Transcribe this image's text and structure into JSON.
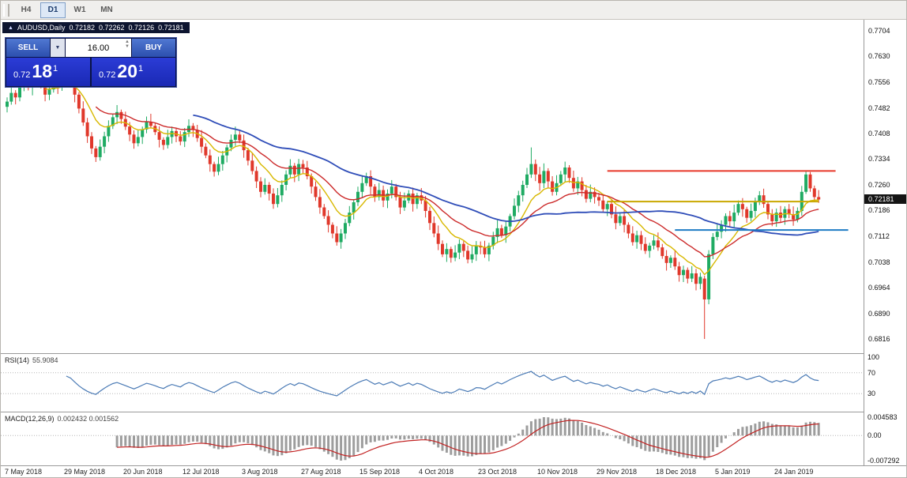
{
  "icons": {
    "collapse": "▲",
    "dropdown": "▼",
    "spin_up": "▲",
    "spin_down": "▼"
  },
  "toolbar": {
    "timeframes": [
      {
        "label": "H4",
        "active": false
      },
      {
        "label": "D1",
        "active": true
      },
      {
        "label": "W1",
        "active": false
      },
      {
        "label": "MN",
        "active": false
      }
    ]
  },
  "chart_header": {
    "symbol": "AUDUSD,Daily",
    "open": "0.72182",
    "high": "0.72262",
    "low": "0.72126",
    "close": "0.72181"
  },
  "trade_panel": {
    "sell_label": "SELL",
    "buy_label": "BUY",
    "volume": "16.00",
    "sell_price": {
      "big_prefix": "0.72",
      "big": "18",
      "sup": "1"
    },
    "buy_price": {
      "big_prefix": "0.72",
      "big": "20",
      "sup": "1"
    }
  },
  "price_axis": {
    "labels": [
      "0.7704",
      "0.7630",
      "0.7556",
      "0.7482",
      "0.7408",
      "0.7334",
      "0.7260",
      "0.7186",
      "0.7112",
      "0.7038",
      "0.6964",
      "0.6890",
      "0.6816"
    ],
    "current": "0.72181"
  },
  "indicators": {
    "rsi": {
      "name": "RSI(14)",
      "value": "55.9084",
      "levels": [
        "100",
        "70",
        "30"
      ],
      "level_values": [
        100,
        70,
        30
      ],
      "line_color": "#4a7ab5"
    },
    "macd": {
      "name": "MACD(12,26,9)",
      "values": "0.002432 0.001562",
      "level_top": "0.004583",
      "level_zero": "0.00",
      "level_bottom": "-0.007292",
      "histogram_color": "#9d9d9d",
      "signal_color": "#c22222"
    }
  },
  "date_axis": [
    "7 May 2018",
    "29 May 2018",
    "20 Jun 2018",
    "12 Jul 2018",
    "3 Aug 2018",
    "27 Aug 2018",
    "15 Sep 2018",
    "4 Oct 2018",
    "23 Oct 2018",
    "10 Nov 2018",
    "29 Nov 2018",
    "18 Dec 2018",
    "5 Jan 2019",
    "24 Jan 2019"
  ],
  "chart_data": {
    "type": "candlestick",
    "title": "AUDUSD Daily",
    "price_min": 0.6816,
    "price_max": 0.7704,
    "up_color": "#1fab63",
    "down_color": "#e0382b",
    "labels_every": 14,
    "moving_averages": [
      {
        "name": "ma-fast",
        "period": 10,
        "method": "ema",
        "color": "#d8b800",
        "width": 1.4
      },
      {
        "name": "ma-medium",
        "period": 22,
        "method": "ema",
        "color": "#cc2a2a",
        "width": 1.4
      },
      {
        "name": "ma-slow",
        "period": 45,
        "method": "sma",
        "color": "#2f4db8",
        "width": 1.8
      }
    ],
    "hlines": [
      {
        "name": "resistance-line",
        "price": 0.73,
        "from_index": 142,
        "to_index": 196,
        "color": "#e8392b"
      },
      {
        "name": "pivot-line",
        "price": 0.7212,
        "from_index": 142,
        "to_index": 192,
        "color": "#c9a800"
      },
      {
        "name": "support-line",
        "price": 0.713,
        "from_index": 158,
        "to_index": 199,
        "color": "#1e7bc4"
      }
    ],
    "candles": [
      [
        0.7485,
        0.7512,
        0.7469,
        0.75
      ],
      [
        0.75,
        0.7544,
        0.7491,
        0.7525
      ],
      [
        0.7525,
        0.7533,
        0.7492,
        0.7512
      ],
      [
        0.7512,
        0.7563,
        0.7501,
        0.7548
      ],
      [
        0.7548,
        0.7585,
        0.753,
        0.7562
      ],
      [
        0.7562,
        0.7572,
        0.7532,
        0.754
      ],
      [
        0.754,
        0.7572,
        0.7518,
        0.7555
      ],
      [
        0.7555,
        0.7577,
        0.7541,
        0.757
      ],
      [
        0.757,
        0.7591,
        0.7538,
        0.7548
      ],
      [
        0.7548,
        0.7561,
        0.7501,
        0.752
      ],
      [
        0.752,
        0.7547,
        0.7504,
        0.7535
      ],
      [
        0.7535,
        0.7569,
        0.7526,
        0.755
      ],
      [
        0.755,
        0.7558,
        0.7522,
        0.7542
      ],
      [
        0.7542,
        0.7573,
        0.7531,
        0.7558
      ],
      [
        0.7558,
        0.7581,
        0.754,
        0.757
      ],
      [
        0.757,
        0.758,
        0.7547,
        0.7555
      ],
      [
        0.7555,
        0.7572,
        0.7498,
        0.752
      ],
      [
        0.752,
        0.7527,
        0.7466,
        0.748
      ],
      [
        0.748,
        0.7501,
        0.743,
        0.744
      ],
      [
        0.744,
        0.7453,
        0.7381,
        0.74
      ],
      [
        0.74,
        0.7412,
        0.7349,
        0.7365
      ],
      [
        0.7365,
        0.7372,
        0.7326,
        0.734
      ],
      [
        0.734,
        0.7391,
        0.733,
        0.737
      ],
      [
        0.737,
        0.7413,
        0.7351,
        0.74
      ],
      [
        0.74,
        0.7446,
        0.7384,
        0.743
      ],
      [
        0.743,
        0.7464,
        0.7421,
        0.7455
      ],
      [
        0.7455,
        0.749,
        0.7435,
        0.747
      ],
      [
        0.747,
        0.7477,
        0.7436,
        0.745
      ],
      [
        0.745,
        0.7471,
        0.7418,
        0.7428
      ],
      [
        0.7428,
        0.7441,
        0.7386,
        0.7405
      ],
      [
        0.7405,
        0.7417,
        0.7364,
        0.738
      ],
      [
        0.738,
        0.7417,
        0.7371,
        0.7398
      ],
      [
        0.7398,
        0.7428,
        0.7378,
        0.742
      ],
      [
        0.742,
        0.7457,
        0.7409,
        0.7442
      ],
      [
        0.7442,
        0.7465,
        0.7424,
        0.743
      ],
      [
        0.743,
        0.744,
        0.7404,
        0.7412
      ],
      [
        0.7412,
        0.7429,
        0.7368,
        0.739
      ],
      [
        0.739,
        0.7397,
        0.7361,
        0.7375
      ],
      [
        0.7375,
        0.7419,
        0.7365,
        0.7398
      ],
      [
        0.7398,
        0.7428,
        0.7379,
        0.7415
      ],
      [
        0.7415,
        0.7423,
        0.7383,
        0.74
      ],
      [
        0.74,
        0.7415,
        0.7374,
        0.7385
      ],
      [
        0.7385,
        0.7424,
        0.7369,
        0.7412
      ],
      [
        0.7412,
        0.7449,
        0.7398,
        0.743
      ],
      [
        0.743,
        0.7438,
        0.7398,
        0.7418
      ],
      [
        0.7418,
        0.7433,
        0.7384,
        0.7395
      ],
      [
        0.7395,
        0.7418,
        0.7352,
        0.737
      ],
      [
        0.737,
        0.738,
        0.7337,
        0.7345
      ],
      [
        0.7345,
        0.7362,
        0.7298,
        0.732
      ],
      [
        0.732,
        0.7327,
        0.7284,
        0.7298
      ],
      [
        0.7298,
        0.7341,
        0.7288,
        0.732
      ],
      [
        0.732,
        0.7358,
        0.7301,
        0.7345
      ],
      [
        0.7345,
        0.7376,
        0.7325,
        0.7368
      ],
      [
        0.7368,
        0.7405,
        0.7357,
        0.739
      ],
      [
        0.739,
        0.7428,
        0.7372,
        0.7405
      ],
      [
        0.7405,
        0.7415,
        0.738,
        0.7388
      ],
      [
        0.7388,
        0.7405,
        0.7338,
        0.736
      ],
      [
        0.736,
        0.7367,
        0.7316,
        0.733
      ],
      [
        0.733,
        0.7351,
        0.729,
        0.73
      ],
      [
        0.73,
        0.7313,
        0.7251,
        0.727
      ],
      [
        0.727,
        0.7282,
        0.7224,
        0.724
      ],
      [
        0.724,
        0.7279,
        0.7232,
        0.726
      ],
      [
        0.726,
        0.7268,
        0.7215,
        0.7235
      ],
      [
        0.7235,
        0.725,
        0.7191,
        0.7205
      ],
      [
        0.7205,
        0.7251,
        0.7195,
        0.723
      ],
      [
        0.723,
        0.7273,
        0.7211,
        0.726
      ],
      [
        0.726,
        0.7302,
        0.7244,
        0.729
      ],
      [
        0.729,
        0.7334,
        0.7281,
        0.7315
      ],
      [
        0.7315,
        0.7323,
        0.7268,
        0.729
      ],
      [
        0.729,
        0.7335,
        0.7271,
        0.732
      ],
      [
        0.732,
        0.7332,
        0.7294,
        0.731
      ],
      [
        0.731,
        0.7329,
        0.7276,
        0.7285
      ],
      [
        0.7285,
        0.7293,
        0.7235,
        0.7255
      ],
      [
        0.7255,
        0.727,
        0.7214,
        0.7225
      ],
      [
        0.7225,
        0.7248,
        0.7177,
        0.7195
      ],
      [
        0.7195,
        0.7205,
        0.7162,
        0.717
      ],
      [
        0.717,
        0.7187,
        0.7123,
        0.7145
      ],
      [
        0.7145,
        0.7152,
        0.7106,
        0.712
      ],
      [
        0.712,
        0.7141,
        0.7085,
        0.7095
      ],
      [
        0.7095,
        0.7133,
        0.7076,
        0.712
      ],
      [
        0.712,
        0.7162,
        0.7104,
        0.715
      ],
      [
        0.715,
        0.7199,
        0.7141,
        0.718
      ],
      [
        0.718,
        0.7218,
        0.716,
        0.721
      ],
      [
        0.721,
        0.7255,
        0.7199,
        0.724
      ],
      [
        0.724,
        0.7288,
        0.7222,
        0.7265
      ],
      [
        0.7265,
        0.7295,
        0.7257,
        0.7285
      ],
      [
        0.7285,
        0.7302,
        0.7233,
        0.7255
      ],
      [
        0.7255,
        0.7262,
        0.7211,
        0.7225
      ],
      [
        0.7225,
        0.7266,
        0.7215,
        0.7245
      ],
      [
        0.7245,
        0.7258,
        0.7196,
        0.7215
      ],
      [
        0.7215,
        0.7247,
        0.7193,
        0.7235
      ],
      [
        0.7235,
        0.7274,
        0.7221,
        0.7255
      ],
      [
        0.7255,
        0.7263,
        0.7215,
        0.7225
      ],
      [
        0.7225,
        0.724,
        0.7176,
        0.7195
      ],
      [
        0.7195,
        0.7238,
        0.7185,
        0.7215
      ],
      [
        0.7215,
        0.7245,
        0.7207,
        0.7235
      ],
      [
        0.7235,
        0.7252,
        0.7183,
        0.7205
      ],
      [
        0.7205,
        0.7237,
        0.7191,
        0.723
      ],
      [
        0.723,
        0.7251,
        0.7205,
        0.7215
      ],
      [
        0.7215,
        0.7228,
        0.7166,
        0.7185
      ],
      [
        0.7185,
        0.7197,
        0.713,
        0.715
      ],
      [
        0.715,
        0.7169,
        0.7109,
        0.712
      ],
      [
        0.712,
        0.7143,
        0.7072,
        0.709
      ],
      [
        0.709,
        0.71,
        0.7052,
        0.706
      ],
      [
        0.706,
        0.7092,
        0.7038,
        0.7075
      ],
      [
        0.7075,
        0.7082,
        0.7036,
        0.705
      ],
      [
        0.705,
        0.7086,
        0.704,
        0.7065
      ],
      [
        0.7065,
        0.7103,
        0.7046,
        0.709
      ],
      [
        0.709,
        0.7098,
        0.7052,
        0.707
      ],
      [
        0.707,
        0.7085,
        0.7034,
        0.7045
      ],
      [
        0.7045,
        0.7083,
        0.7035,
        0.706
      ],
      [
        0.706,
        0.7098,
        0.7041,
        0.7085
      ],
      [
        0.7085,
        0.7097,
        0.706,
        0.708
      ],
      [
        0.708,
        0.7099,
        0.705,
        0.706
      ],
      [
        0.706,
        0.7093,
        0.704,
        0.7085
      ],
      [
        0.7085,
        0.7125,
        0.7074,
        0.711
      ],
      [
        0.711,
        0.7158,
        0.7092,
        0.7135
      ],
      [
        0.7135,
        0.7145,
        0.7107,
        0.7115
      ],
      [
        0.7115,
        0.7157,
        0.7093,
        0.714
      ],
      [
        0.714,
        0.7177,
        0.7126,
        0.717
      ],
      [
        0.717,
        0.7221,
        0.716,
        0.72
      ],
      [
        0.72,
        0.7243,
        0.7181,
        0.723
      ],
      [
        0.723,
        0.7272,
        0.7212,
        0.726
      ],
      [
        0.726,
        0.7309,
        0.7251,
        0.729
      ],
      [
        0.729,
        0.7368,
        0.728,
        0.732
      ],
      [
        0.732,
        0.7333,
        0.7271,
        0.729
      ],
      [
        0.729,
        0.7312,
        0.7243,
        0.7265
      ],
      [
        0.7265,
        0.7322,
        0.7251,
        0.73
      ],
      [
        0.73,
        0.7308,
        0.725,
        0.727
      ],
      [
        0.727,
        0.7285,
        0.7229,
        0.724
      ],
      [
        0.724,
        0.7288,
        0.723,
        0.7265
      ],
      [
        0.7265,
        0.73,
        0.7257,
        0.729
      ],
      [
        0.729,
        0.7327,
        0.7268,
        0.731
      ],
      [
        0.731,
        0.7317,
        0.7266,
        0.728
      ],
      [
        0.728,
        0.7301,
        0.724,
        0.725
      ],
      [
        0.725,
        0.7283,
        0.7231,
        0.727
      ],
      [
        0.727,
        0.7282,
        0.7227,
        0.7245
      ],
      [
        0.7245,
        0.726,
        0.7209,
        0.722
      ],
      [
        0.722,
        0.7261,
        0.721,
        0.724
      ],
      [
        0.724,
        0.7253,
        0.7206,
        0.7225
      ],
      [
        0.7225,
        0.7237,
        0.7199,
        0.7215
      ],
      [
        0.7215,
        0.7234,
        0.7181,
        0.719
      ],
      [
        0.719,
        0.7213,
        0.717,
        0.7205
      ],
      [
        0.7205,
        0.722,
        0.7164,
        0.7175
      ],
      [
        0.7175,
        0.7198,
        0.7132,
        0.715
      ],
      [
        0.715,
        0.718,
        0.7142,
        0.717
      ],
      [
        0.717,
        0.7187,
        0.7123,
        0.7145
      ],
      [
        0.7145,
        0.7152,
        0.7106,
        0.712
      ],
      [
        0.712,
        0.7141,
        0.7085,
        0.7095
      ],
      [
        0.7095,
        0.7128,
        0.7076,
        0.7115
      ],
      [
        0.7115,
        0.7127,
        0.7072,
        0.709
      ],
      [
        0.709,
        0.7109,
        0.7061,
        0.707
      ],
      [
        0.707,
        0.7093,
        0.705,
        0.7085
      ],
      [
        0.7085,
        0.7115,
        0.7074,
        0.71
      ],
      [
        0.71,
        0.7123,
        0.707,
        0.708
      ],
      [
        0.708,
        0.709,
        0.7047,
        0.7055
      ],
      [
        0.7055,
        0.7072,
        0.7013,
        0.7035
      ],
      [
        0.7035,
        0.7057,
        0.7021,
        0.705
      ],
      [
        0.705,
        0.7071,
        0.7015,
        0.7025
      ],
      [
        0.7025,
        0.7038,
        0.6981,
        0.7
      ],
      [
        0.7,
        0.7027,
        0.698,
        0.7015
      ],
      [
        0.7015,
        0.7022,
        0.6976,
        0.699
      ],
      [
        0.699,
        0.7026,
        0.698,
        0.7005
      ],
      [
        0.7005,
        0.7018,
        0.6956,
        0.6975
      ],
      [
        0.6975,
        0.7007,
        0.6959,
        0.6995
      ],
      [
        0.699,
        0.6998,
        0.6816,
        0.693
      ],
      [
        0.693,
        0.7072,
        0.6916,
        0.706
      ],
      [
        0.706,
        0.7121,
        0.7046,
        0.711
      ],
      [
        0.711,
        0.7146,
        0.71,
        0.7125
      ],
      [
        0.7125,
        0.7158,
        0.7106,
        0.7145
      ],
      [
        0.7145,
        0.7178,
        0.7125,
        0.717
      ],
      [
        0.717,
        0.7185,
        0.7141,
        0.7155
      ],
      [
        0.7155,
        0.7203,
        0.7137,
        0.718
      ],
      [
        0.718,
        0.7215,
        0.7172,
        0.7205
      ],
      [
        0.7205,
        0.7222,
        0.7168,
        0.719
      ],
      [
        0.719,
        0.7197,
        0.7151,
        0.7165
      ],
      [
        0.7165,
        0.7206,
        0.7155,
        0.7185
      ],
      [
        0.7185,
        0.7223,
        0.7166,
        0.721
      ],
      [
        0.721,
        0.7242,
        0.7202,
        0.723
      ],
      [
        0.723,
        0.7249,
        0.7194,
        0.7205
      ],
      [
        0.7205,
        0.7213,
        0.7161,
        0.7175
      ],
      [
        0.7175,
        0.719,
        0.7141,
        0.7155
      ],
      [
        0.7155,
        0.7192,
        0.7139,
        0.718
      ],
      [
        0.718,
        0.7199,
        0.7151,
        0.7165
      ],
      [
        0.7165,
        0.7198,
        0.7145,
        0.719
      ],
      [
        0.719,
        0.7205,
        0.7164,
        0.7175
      ],
      [
        0.7175,
        0.7198,
        0.7142,
        0.716
      ],
      [
        0.716,
        0.7195,
        0.7152,
        0.7185
      ],
      [
        0.7185,
        0.7257,
        0.7171,
        0.724
      ],
      [
        0.724,
        0.73,
        0.7234,
        0.729
      ],
      [
        0.729,
        0.7297,
        0.724,
        0.725
      ],
      [
        0.725,
        0.7258,
        0.7211,
        0.7225
      ],
      [
        0.7225,
        0.7245,
        0.7208,
        0.7218
      ]
    ]
  }
}
